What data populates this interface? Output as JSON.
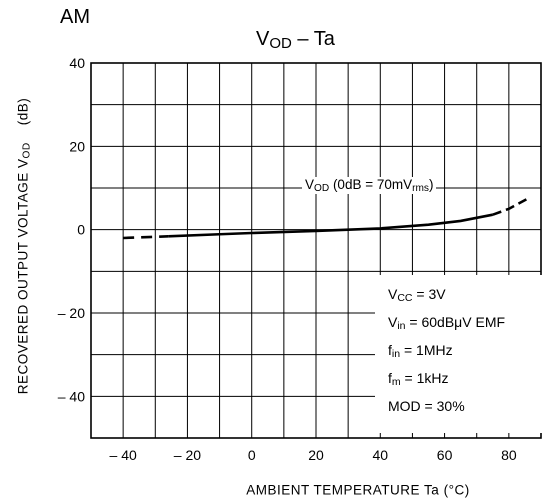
{
  "chart_data": {
    "type": "line",
    "panel_label": "AM",
    "title": {
      "main": "V",
      "sub": "OD",
      "rest": " – Ta"
    },
    "xlabel": "AMBIENT  TEMPERATURE    Ta    (°C)",
    "ylabel": "RECOVERED  OUTPUT  VOLTAGE    V",
    "ylabel_sub": "OD",
    "ylabel_unit": "(dB)",
    "xlim": [
      -50,
      90
    ],
    "ylim": [
      -50,
      40
    ],
    "x_ticks": [
      -40,
      -20,
      0,
      20,
      40,
      60,
      80
    ],
    "x_tick_labels": [
      "– 40",
      "– 20",
      "0",
      "20",
      "40",
      "60",
      "80"
    ],
    "y_ticks": [
      40,
      20,
      0,
      -20,
      -40
    ],
    "y_tick_labels": [
      "40",
      "20",
      "0",
      "– 20",
      "– 40"
    ],
    "grid": true,
    "series": [
      {
        "solid": {
          "x": [
            -26,
            -10,
            0,
            20,
            40,
            55,
            65,
            75
          ],
          "y": [
            -1.6,
            -1.1,
            -0.8,
            -0.3,
            0.3,
            1.2,
            2.1,
            3.6
          ]
        },
        "dashed_low": {
          "x": [
            -40,
            -26
          ],
          "y": [
            -2.0,
            -1.6
          ]
        },
        "dashed_high": {
          "x": [
            75,
            80,
            86
          ],
          "y": [
            3.6,
            5.0,
            7.5
          ]
        }
      }
    ],
    "annotation": {
      "main": "V",
      "sub": "OD",
      "rest": " (0dB = 70mV",
      "sub2": "rms",
      "end": ")"
    },
    "conditions": [
      {
        "main": "V",
        "sub": "CC",
        "rest": " = 3V"
      },
      {
        "main": "V",
        "sub": "in",
        "rest": " = 60dBμV  EMF"
      },
      {
        "main": "f",
        "sub": "in",
        "rest": " = 1MHz"
      },
      {
        "main": "f",
        "sub": "m",
        "rest": " = 1kHz"
      },
      {
        "main": "MOD = 30%",
        "sub": "",
        "rest": ""
      }
    ]
  }
}
